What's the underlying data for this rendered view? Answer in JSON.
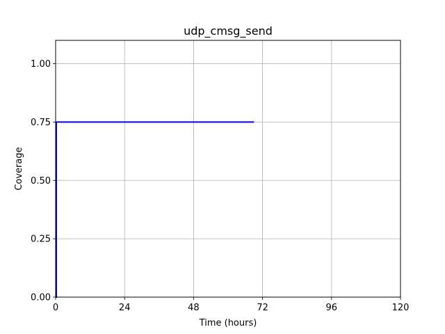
{
  "chart_data": {
    "type": "line",
    "title": "udp_cmsg_send",
    "xlabel": "Time (hours)",
    "ylabel": "Coverage",
    "xlim": [
      0,
      120
    ],
    "ylim": [
      0,
      1.1
    ],
    "xticks": [
      0,
      24,
      48,
      72,
      96,
      120
    ],
    "xtick_labels": [
      "0",
      "24",
      "48",
      "72",
      "96",
      "120"
    ],
    "yticks": [
      0,
      0.25,
      0.5,
      0.75,
      1.0
    ],
    "ytick_labels": [
      "0.00",
      "0.25",
      "0.50",
      "0.75",
      "1.00"
    ],
    "grid": true,
    "series": [
      {
        "color": "#0000ff",
        "x": [
          0,
          0.25,
          0.25,
          69
        ],
        "y": [
          0,
          0,
          0.75,
          0.75
        ]
      }
    ]
  }
}
